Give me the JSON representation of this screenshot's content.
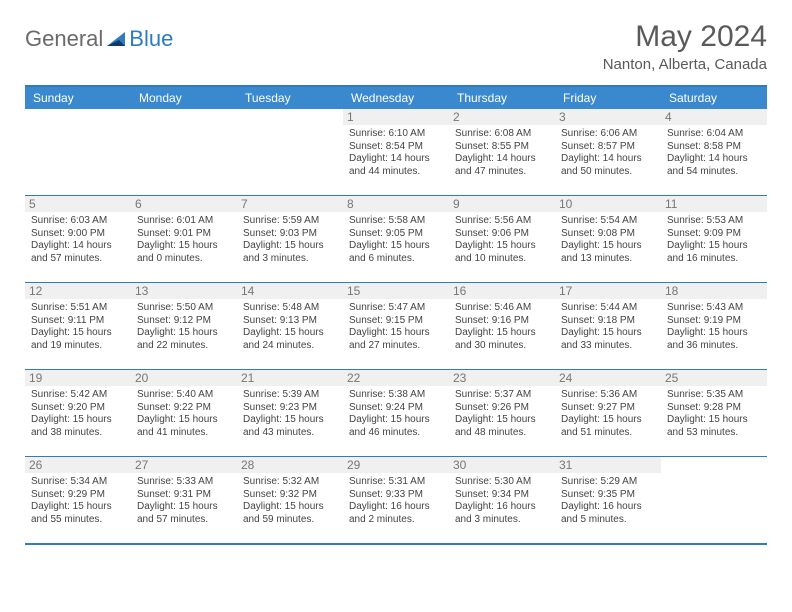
{
  "logo": {
    "general": "General",
    "blue": "Blue"
  },
  "title": "May 2024",
  "location": "Nanton, Alberta, Canada",
  "dayHeaders": [
    "Sunday",
    "Monday",
    "Tuesday",
    "Wednesday",
    "Thursday",
    "Friday",
    "Saturday"
  ],
  "colors": {
    "accent": "#2f7bbf",
    "headerBg": "#3a89cf",
    "dayBg": "#f0f0f0",
    "text": "#444444",
    "title": "#5a5a5a"
  },
  "style": {
    "cellFontSize": 10,
    "titleFontSize": 30,
    "locationFontSize": 15,
    "headerFontSize": 12
  },
  "weeks": [
    [
      {
        "n": "",
        "sr": "",
        "ss": "",
        "dl": ""
      },
      {
        "n": "",
        "sr": "",
        "ss": "",
        "dl": ""
      },
      {
        "n": "",
        "sr": "",
        "ss": "",
        "dl": ""
      },
      {
        "n": "1",
        "sr": "Sunrise: 6:10 AM",
        "ss": "Sunset: 8:54 PM",
        "dl": "Daylight: 14 hours and 44 minutes."
      },
      {
        "n": "2",
        "sr": "Sunrise: 6:08 AM",
        "ss": "Sunset: 8:55 PM",
        "dl": "Daylight: 14 hours and 47 minutes."
      },
      {
        "n": "3",
        "sr": "Sunrise: 6:06 AM",
        "ss": "Sunset: 8:57 PM",
        "dl": "Daylight: 14 hours and 50 minutes."
      },
      {
        "n": "4",
        "sr": "Sunrise: 6:04 AM",
        "ss": "Sunset: 8:58 PM",
        "dl": "Daylight: 14 hours and 54 minutes."
      }
    ],
    [
      {
        "n": "5",
        "sr": "Sunrise: 6:03 AM",
        "ss": "Sunset: 9:00 PM",
        "dl": "Daylight: 14 hours and 57 minutes."
      },
      {
        "n": "6",
        "sr": "Sunrise: 6:01 AM",
        "ss": "Sunset: 9:01 PM",
        "dl": "Daylight: 15 hours and 0 minutes."
      },
      {
        "n": "7",
        "sr": "Sunrise: 5:59 AM",
        "ss": "Sunset: 9:03 PM",
        "dl": "Daylight: 15 hours and 3 minutes."
      },
      {
        "n": "8",
        "sr": "Sunrise: 5:58 AM",
        "ss": "Sunset: 9:05 PM",
        "dl": "Daylight: 15 hours and 6 minutes."
      },
      {
        "n": "9",
        "sr": "Sunrise: 5:56 AM",
        "ss": "Sunset: 9:06 PM",
        "dl": "Daylight: 15 hours and 10 minutes."
      },
      {
        "n": "10",
        "sr": "Sunrise: 5:54 AM",
        "ss": "Sunset: 9:08 PM",
        "dl": "Daylight: 15 hours and 13 minutes."
      },
      {
        "n": "11",
        "sr": "Sunrise: 5:53 AM",
        "ss": "Sunset: 9:09 PM",
        "dl": "Daylight: 15 hours and 16 minutes."
      }
    ],
    [
      {
        "n": "12",
        "sr": "Sunrise: 5:51 AM",
        "ss": "Sunset: 9:11 PM",
        "dl": "Daylight: 15 hours and 19 minutes."
      },
      {
        "n": "13",
        "sr": "Sunrise: 5:50 AM",
        "ss": "Sunset: 9:12 PM",
        "dl": "Daylight: 15 hours and 22 minutes."
      },
      {
        "n": "14",
        "sr": "Sunrise: 5:48 AM",
        "ss": "Sunset: 9:13 PM",
        "dl": "Daylight: 15 hours and 24 minutes."
      },
      {
        "n": "15",
        "sr": "Sunrise: 5:47 AM",
        "ss": "Sunset: 9:15 PM",
        "dl": "Daylight: 15 hours and 27 minutes."
      },
      {
        "n": "16",
        "sr": "Sunrise: 5:46 AM",
        "ss": "Sunset: 9:16 PM",
        "dl": "Daylight: 15 hours and 30 minutes."
      },
      {
        "n": "17",
        "sr": "Sunrise: 5:44 AM",
        "ss": "Sunset: 9:18 PM",
        "dl": "Daylight: 15 hours and 33 minutes."
      },
      {
        "n": "18",
        "sr": "Sunrise: 5:43 AM",
        "ss": "Sunset: 9:19 PM",
        "dl": "Daylight: 15 hours and 36 minutes."
      }
    ],
    [
      {
        "n": "19",
        "sr": "Sunrise: 5:42 AM",
        "ss": "Sunset: 9:20 PM",
        "dl": "Daylight: 15 hours and 38 minutes."
      },
      {
        "n": "20",
        "sr": "Sunrise: 5:40 AM",
        "ss": "Sunset: 9:22 PM",
        "dl": "Daylight: 15 hours and 41 minutes."
      },
      {
        "n": "21",
        "sr": "Sunrise: 5:39 AM",
        "ss": "Sunset: 9:23 PM",
        "dl": "Daylight: 15 hours and 43 minutes."
      },
      {
        "n": "22",
        "sr": "Sunrise: 5:38 AM",
        "ss": "Sunset: 9:24 PM",
        "dl": "Daylight: 15 hours and 46 minutes."
      },
      {
        "n": "23",
        "sr": "Sunrise: 5:37 AM",
        "ss": "Sunset: 9:26 PM",
        "dl": "Daylight: 15 hours and 48 minutes."
      },
      {
        "n": "24",
        "sr": "Sunrise: 5:36 AM",
        "ss": "Sunset: 9:27 PM",
        "dl": "Daylight: 15 hours and 51 minutes."
      },
      {
        "n": "25",
        "sr": "Sunrise: 5:35 AM",
        "ss": "Sunset: 9:28 PM",
        "dl": "Daylight: 15 hours and 53 minutes."
      }
    ],
    [
      {
        "n": "26",
        "sr": "Sunrise: 5:34 AM",
        "ss": "Sunset: 9:29 PM",
        "dl": "Daylight: 15 hours and 55 minutes."
      },
      {
        "n": "27",
        "sr": "Sunrise: 5:33 AM",
        "ss": "Sunset: 9:31 PM",
        "dl": "Daylight: 15 hours and 57 minutes."
      },
      {
        "n": "28",
        "sr": "Sunrise: 5:32 AM",
        "ss": "Sunset: 9:32 PM",
        "dl": "Daylight: 15 hours and 59 minutes."
      },
      {
        "n": "29",
        "sr": "Sunrise: 5:31 AM",
        "ss": "Sunset: 9:33 PM",
        "dl": "Daylight: 16 hours and 2 minutes."
      },
      {
        "n": "30",
        "sr": "Sunrise: 5:30 AM",
        "ss": "Sunset: 9:34 PM",
        "dl": "Daylight: 16 hours and 3 minutes."
      },
      {
        "n": "31",
        "sr": "Sunrise: 5:29 AM",
        "ss": "Sunset: 9:35 PM",
        "dl": "Daylight: 16 hours and 5 minutes."
      },
      {
        "n": "",
        "sr": "",
        "ss": "",
        "dl": ""
      }
    ]
  ]
}
